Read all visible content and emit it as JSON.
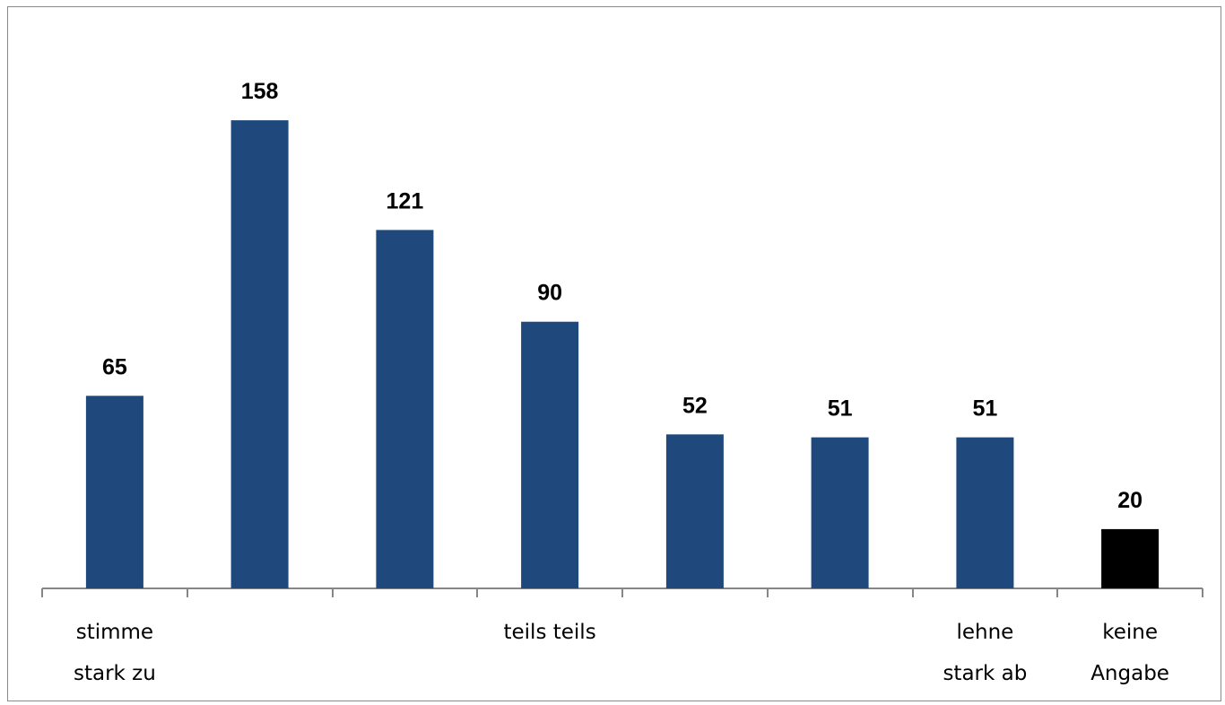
{
  "chart_data": {
    "type": "bar",
    "categories": [
      [
        "stimme",
        "stark zu"
      ],
      [],
      [],
      [
        "teils teils"
      ],
      [],
      [],
      [
        "lehne",
        "stark ab"
      ],
      [
        "keine",
        "Angabe"
      ]
    ],
    "values": [
      65,
      158,
      121,
      90,
      52,
      51,
      51,
      20
    ],
    "bar_colors": [
      "#1f497d",
      "#1f497d",
      "#1f497d",
      "#1f497d",
      "#1f497d",
      "#1f497d",
      "#1f497d",
      "#000000"
    ],
    "axis_color": "#868686",
    "ylim": [
      0,
      175
    ],
    "grid": false,
    "legend": "none",
    "data_labels": true
  }
}
